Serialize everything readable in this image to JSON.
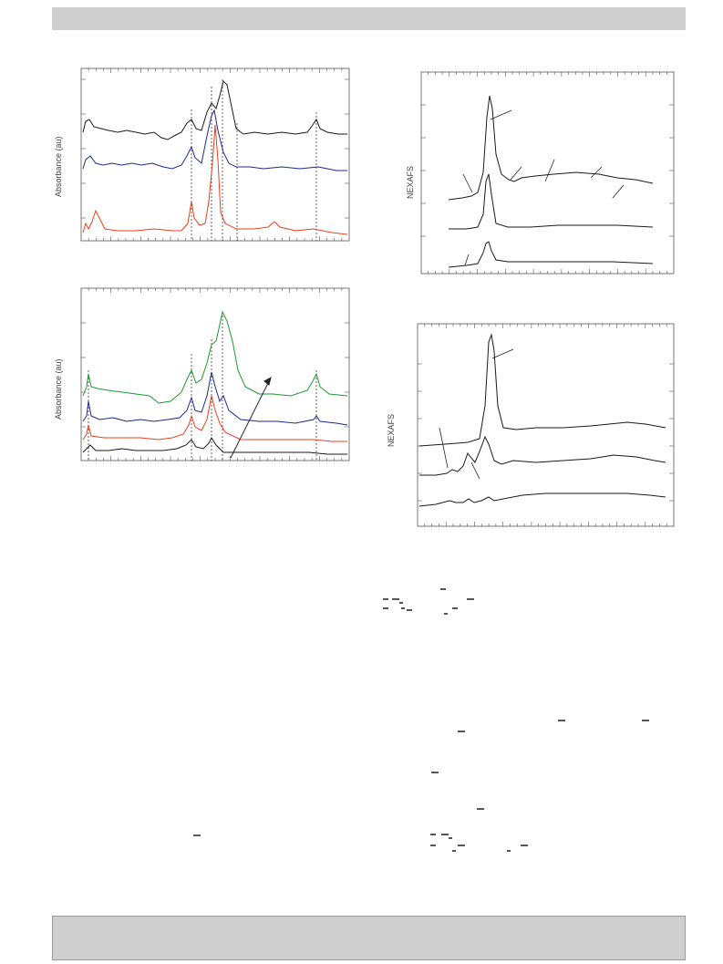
{
  "page": {
    "panels": [
      {
        "id": "top-left-ir",
        "ylabel": "Absorbance (au)",
        "traces": [
          "#1a1a1a",
          "#1c2a8a",
          "#e8401c"
        ]
      },
      {
        "id": "bottom-left-ir",
        "ylabel": "Absorbance (au)",
        "traces": [
          "#1d9a2e",
          "#1c2a8a",
          "#e8401c",
          "#1a1a1a"
        ]
      },
      {
        "id": "top-right-nexafs",
        "ylabel": "NEXAFS",
        "traces": [
          "#1a1a1a",
          "#1a1a1a",
          "#1a1a1a"
        ]
      },
      {
        "id": "bottom-right-nexafs",
        "ylabel": "NEXAFS",
        "traces": [
          "#1a1a1a",
          "#1a1a1a",
          "#1a1a1a"
        ]
      }
    ]
  }
}
